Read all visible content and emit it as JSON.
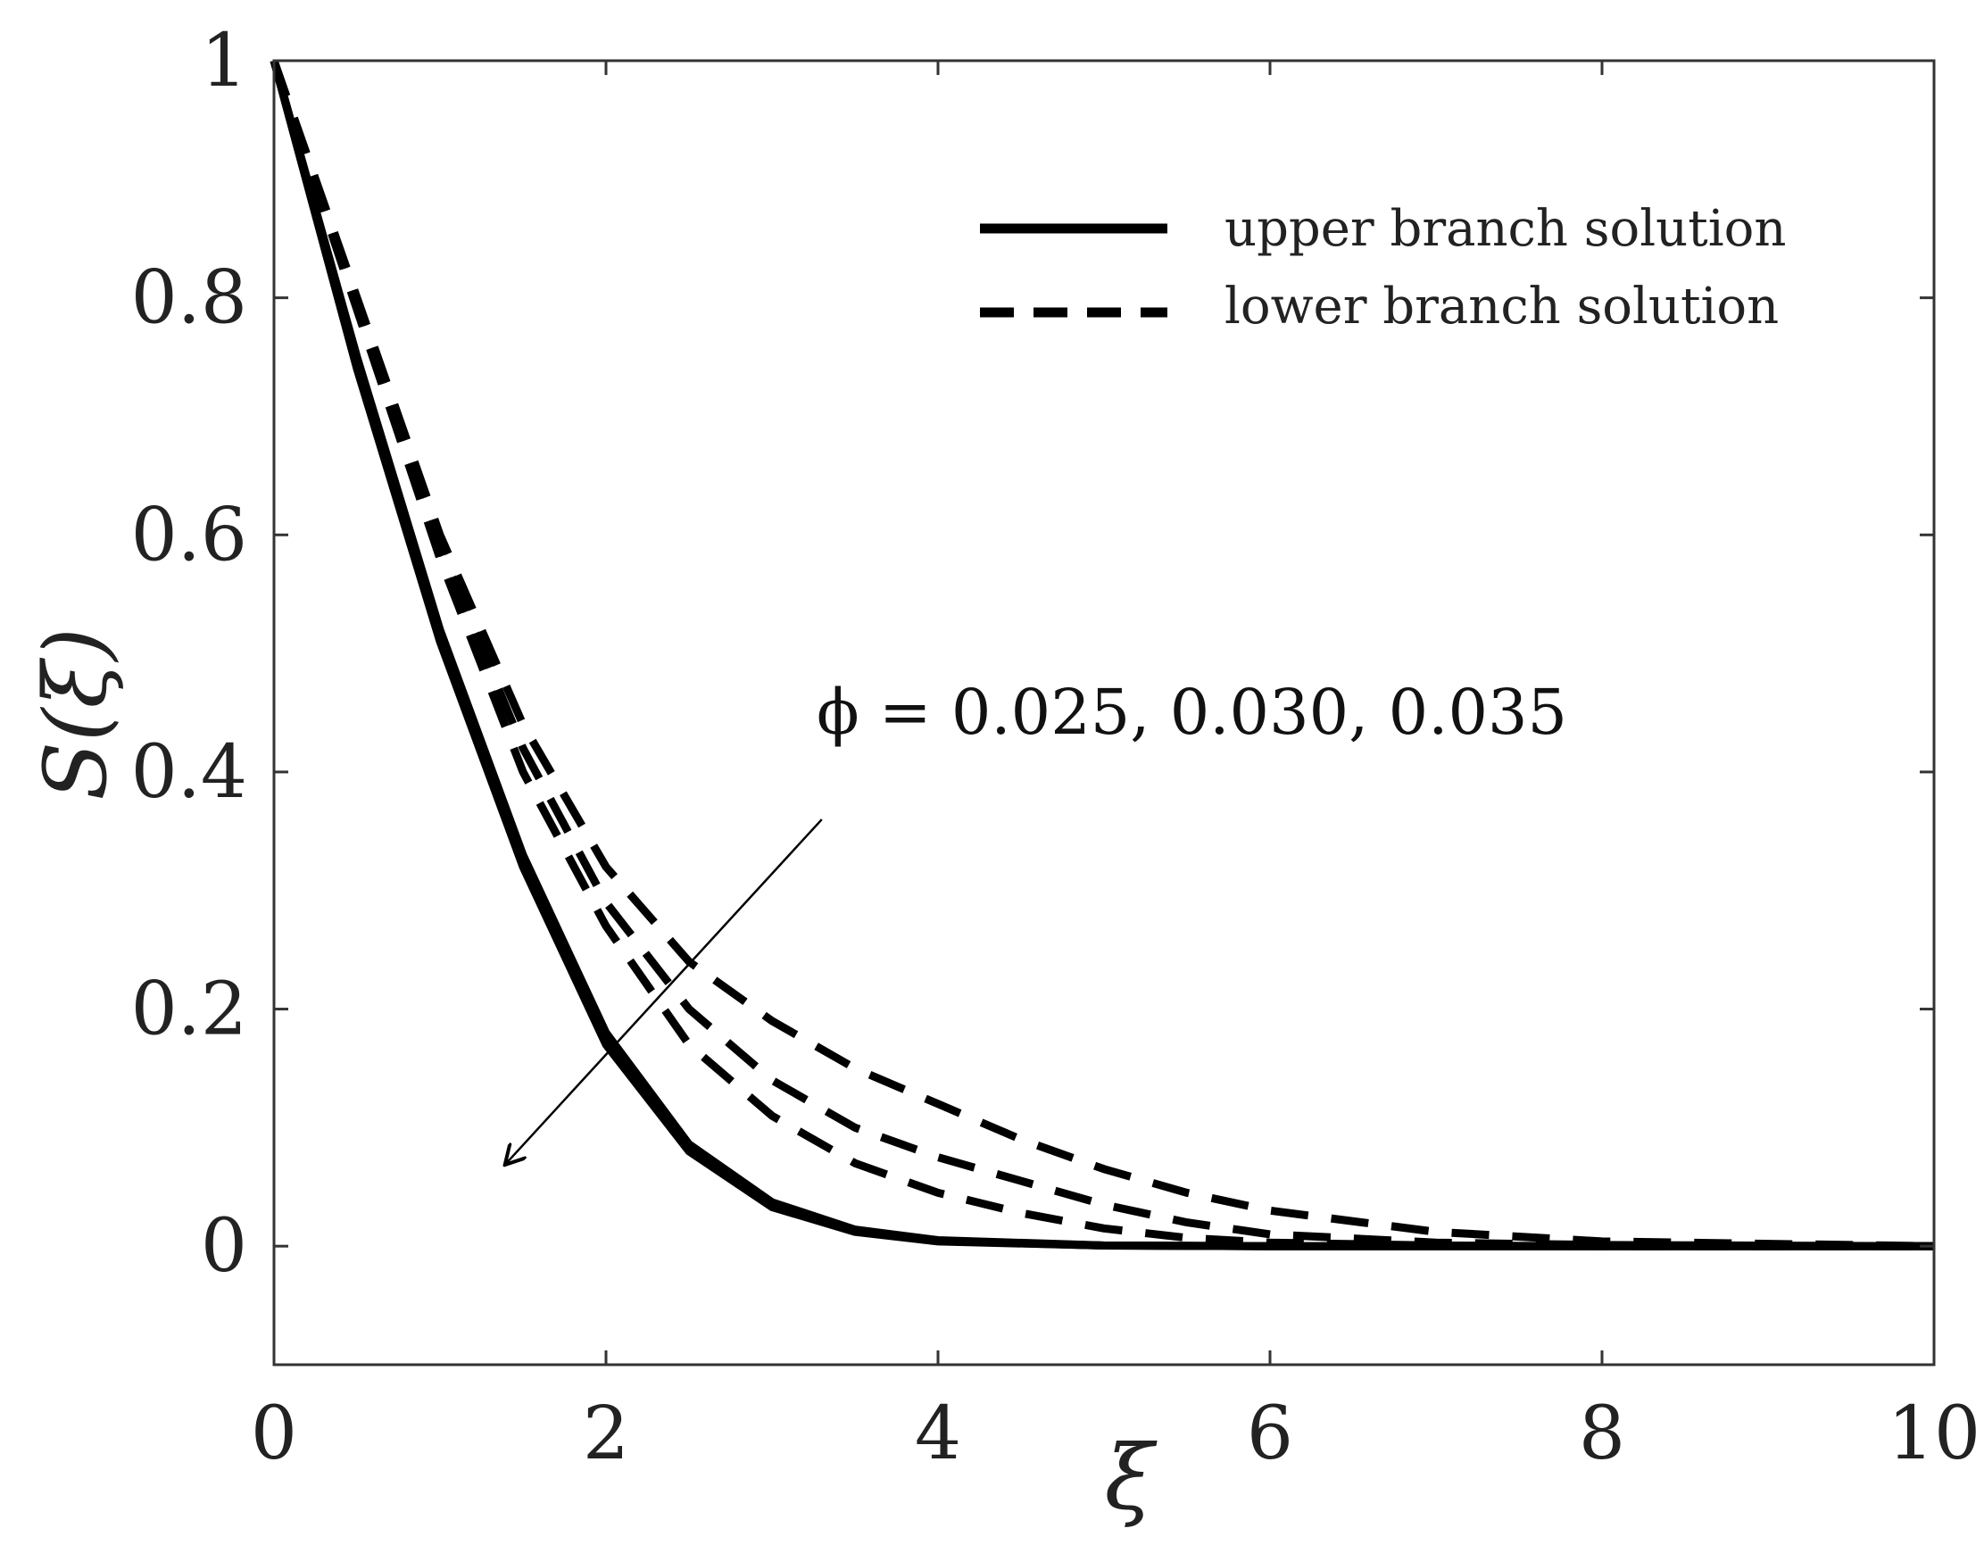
{
  "chart_data": {
    "type": "line",
    "xlabel": "ξ",
    "ylabel": "S(ξ)",
    "xlim": [
      0,
      10
    ],
    "ylim": [
      -0.1,
      1
    ],
    "xticks": [
      0,
      2,
      4,
      6,
      8,
      10
    ],
    "yticks": [
      0,
      0.2,
      0.4,
      0.6,
      0.8,
      1
    ],
    "xtick_labels": [
      "0",
      "2",
      "4",
      "6",
      "8",
      "10"
    ],
    "ytick_labels": [
      "0",
      "0.2",
      "0.4",
      "0.6",
      "0.8",
      "1"
    ],
    "grid": false,
    "legend_position": "top-right",
    "legend": [
      {
        "label": "upper branch solution",
        "style": "solid"
      },
      {
        "label": "lower branch solution",
        "style": "dashed"
      }
    ],
    "annotation": {
      "text": "ϕ = 0.025, 0.030, 0.035",
      "arrow_from": [
        3.3,
        0.36
      ],
      "arrow_to": [
        1.4,
        0.07
      ]
    },
    "series": [
      {
        "branch": "upper",
        "phi": 0.025,
        "style": "solid",
        "x": [
          0,
          0.5,
          1,
          1.5,
          2,
          2.5,
          3,
          3.5,
          4,
          5,
          6,
          8,
          10
        ],
        "y": [
          1,
          0.74,
          0.51,
          0.32,
          0.17,
          0.08,
          0.033,
          0.012,
          0.004,
          0.0005,
          0,
          0,
          0
        ]
      },
      {
        "branch": "upper",
        "phi": 0.03,
        "style": "solid",
        "x": [
          0,
          0.5,
          1,
          1.5,
          2,
          2.5,
          3,
          3.5,
          4,
          5,
          6,
          8,
          10
        ],
        "y": [
          1,
          0.745,
          0.515,
          0.325,
          0.175,
          0.083,
          0.035,
          0.013,
          0.0045,
          0.0005,
          0,
          0,
          0
        ]
      },
      {
        "branch": "upper",
        "phi": 0.035,
        "style": "solid",
        "x": [
          0,
          0.5,
          1,
          1.5,
          2,
          2.5,
          3,
          3.5,
          4,
          5,
          6,
          8,
          10
        ],
        "y": [
          1,
          0.75,
          0.52,
          0.33,
          0.18,
          0.086,
          0.037,
          0.014,
          0.005,
          0.0006,
          0,
          0,
          0
        ]
      },
      {
        "branch": "lower",
        "phi": 0.025,
        "style": "dashed",
        "x": [
          0,
          0.5,
          1,
          1.5,
          2,
          2.5,
          3,
          3.5,
          4,
          4.5,
          5,
          5.5,
          6,
          7,
          8,
          10
        ],
        "y": [
          1,
          0.8,
          0.6,
          0.44,
          0.32,
          0.24,
          0.19,
          0.15,
          0.12,
          0.09,
          0.065,
          0.045,
          0.03,
          0.012,
          0.004,
          0
        ]
      },
      {
        "branch": "lower",
        "phi": 0.03,
        "style": "dashed",
        "x": [
          0,
          0.5,
          1,
          1.5,
          2,
          2.5,
          3,
          3.5,
          4,
          4.5,
          5,
          5.5,
          6,
          7,
          8,
          10
        ],
        "y": [
          1,
          0.795,
          0.59,
          0.42,
          0.29,
          0.2,
          0.14,
          0.1,
          0.075,
          0.055,
          0.035,
          0.02,
          0.01,
          0.003,
          0.001,
          0
        ]
      },
      {
        "branch": "lower",
        "phi": 0.035,
        "style": "dashed",
        "x": [
          0,
          0.5,
          1,
          1.5,
          2,
          2.5,
          3,
          3.5,
          4,
          4.5,
          5,
          5.5,
          6,
          7,
          8,
          10
        ],
        "y": [
          1,
          0.79,
          0.58,
          0.4,
          0.27,
          0.17,
          0.11,
          0.07,
          0.045,
          0.028,
          0.015,
          0.007,
          0.003,
          0.0005,
          0,
          0
        ]
      }
    ]
  }
}
